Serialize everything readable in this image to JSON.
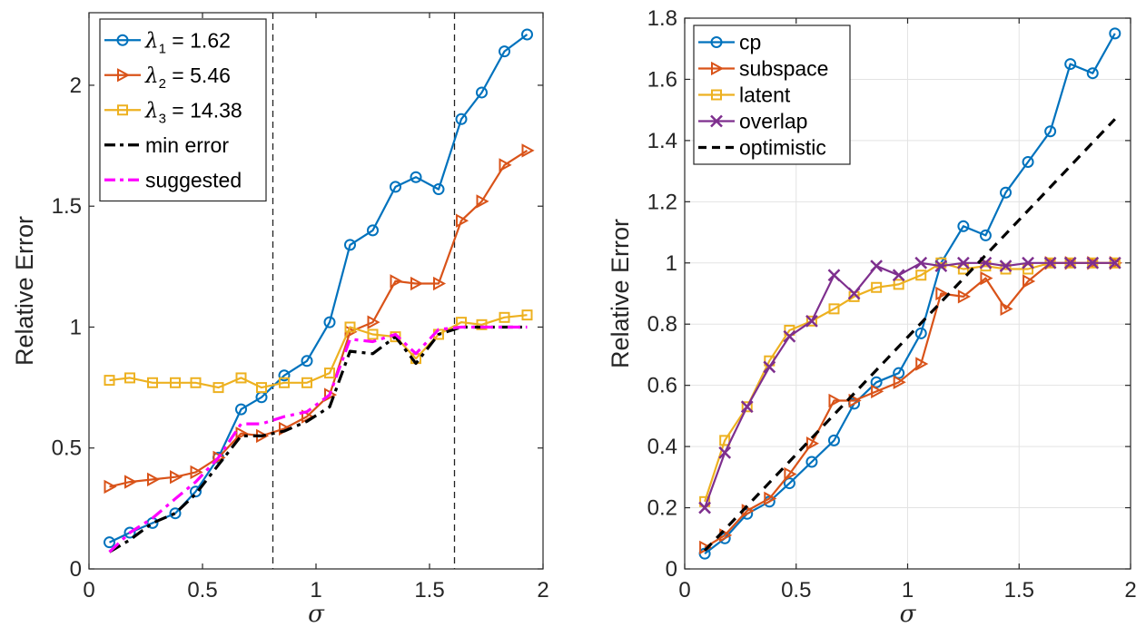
{
  "chart_data": [
    {
      "type": "line",
      "xlabel": "σ",
      "ylabel": "Relative Error",
      "xlim": [
        0,
        2
      ],
      "ylim": [
        0,
        2.3
      ],
      "xticks": [
        0,
        0.5,
        1,
        1.5,
        2
      ],
      "yticks": [
        0,
        0.5,
        1,
        1.5,
        2
      ],
      "xtick_labels": [
        "0",
        "0.5",
        "1",
        "1.5",
        "2"
      ],
      "ytick_labels": [
        "0",
        "0.5",
        "1",
        "1.5",
        "2"
      ],
      "grid": false,
      "legend_position": "top-left",
      "vlines": [
        0.81,
        1.61
      ],
      "series": [
        {
          "name": "λ1 = 1.62",
          "label": {
            "sym": "λ",
            "sub": "1",
            "rest": " = 1.62"
          },
          "color": "#0072BD",
          "marker": "circle",
          "dash": "solid",
          "x": [
            0.09,
            0.18,
            0.28,
            0.38,
            0.47,
            0.57,
            0.67,
            0.76,
            0.86,
            0.96,
            1.06,
            1.15,
            1.25,
            1.35,
            1.44,
            1.54,
            1.64,
            1.73,
            1.83,
            1.93
          ],
          "y": [
            0.11,
            0.15,
            0.19,
            0.23,
            0.32,
            0.46,
            0.66,
            0.71,
            0.8,
            0.86,
            1.02,
            1.34,
            1.4,
            1.58,
            1.62,
            1.57,
            1.86,
            1.97,
            2.14,
            2.21
          ]
        },
        {
          "name": "λ2 = 5.46",
          "label": {
            "sym": "λ",
            "sub": "2",
            "rest": " = 5.46"
          },
          "color": "#D95319",
          "marker": "triangle-right",
          "dash": "solid",
          "x": [
            0.09,
            0.18,
            0.28,
            0.38,
            0.47,
            0.57,
            0.67,
            0.76,
            0.86,
            0.96,
            1.06,
            1.15,
            1.25,
            1.35,
            1.44,
            1.54,
            1.64,
            1.73,
            1.83,
            1.93
          ],
          "y": [
            0.34,
            0.36,
            0.37,
            0.38,
            0.4,
            0.46,
            0.56,
            0.55,
            0.58,
            0.63,
            0.72,
            0.98,
            1.02,
            1.19,
            1.18,
            1.18,
            1.44,
            1.52,
            1.67,
            1.73
          ]
        },
        {
          "name": "λ3 = 14.38",
          "label": {
            "sym": "λ",
            "sub": "3",
            "rest": " = 14.38"
          },
          "color": "#EDB120",
          "marker": "square",
          "dash": "solid",
          "x": [
            0.09,
            0.18,
            0.28,
            0.38,
            0.47,
            0.57,
            0.67,
            0.76,
            0.86,
            0.96,
            1.06,
            1.15,
            1.25,
            1.35,
            1.44,
            1.54,
            1.64,
            1.73,
            1.83,
            1.93
          ],
          "y": [
            0.78,
            0.79,
            0.77,
            0.77,
            0.77,
            0.75,
            0.79,
            0.75,
            0.77,
            0.77,
            0.81,
            1.0,
            0.97,
            0.96,
            0.87,
            0.97,
            1.02,
            1.01,
            1.04,
            1.05
          ]
        },
        {
          "name": "min error",
          "label": {
            "sym": "",
            "sub": "",
            "rest": "min error"
          },
          "color": "#000000",
          "marker": "none",
          "dash": "dashdot",
          "x": [
            0.09,
            0.18,
            0.28,
            0.38,
            0.47,
            0.57,
            0.67,
            0.76,
            0.86,
            0.96,
            1.06,
            1.15,
            1.25,
            1.35,
            1.44,
            1.54,
            1.64,
            1.73,
            1.83,
            1.93
          ],
          "y": [
            0.07,
            0.12,
            0.19,
            0.23,
            0.31,
            0.43,
            0.55,
            0.55,
            0.57,
            0.61,
            0.67,
            0.9,
            0.89,
            0.96,
            0.85,
            0.97,
            1.0,
            1.0,
            1.0,
            1.0
          ]
        },
        {
          "name": "suggested",
          "label": {
            "sym": "",
            "sub": "",
            "rest": "suggested"
          },
          "color": "#FF00FF",
          "marker": "none",
          "dash": "dashdot",
          "x": [
            0.09,
            0.18,
            0.28,
            0.38,
            0.47,
            0.57,
            0.67,
            0.76,
            0.86,
            0.96,
            1.06,
            1.15,
            1.25,
            1.35,
            1.44,
            1.54,
            1.64,
            1.73,
            1.83,
            1.93
          ],
          "y": [
            0.07,
            0.15,
            0.21,
            0.29,
            0.36,
            0.46,
            0.6,
            0.6,
            0.63,
            0.65,
            0.72,
            0.95,
            0.94,
            0.97,
            0.89,
            0.99,
            1.0,
            1.0,
            1.0,
            1.0
          ]
        }
      ]
    },
    {
      "type": "line",
      "xlabel": "σ",
      "ylabel": "Relative Error",
      "xlim": [
        0,
        2
      ],
      "ylim": [
        0,
        1.8
      ],
      "xticks": [
        0,
        0.5,
        1,
        1.5,
        2
      ],
      "yticks": [
        0,
        0.2,
        0.4,
        0.6,
        0.8,
        1,
        1.2,
        1.4,
        1.6,
        1.8
      ],
      "xtick_labels": [
        "0",
        "0.5",
        "1",
        "1.5",
        "2"
      ],
      "ytick_labels": [
        "0",
        "0.2",
        "0.4",
        "0.6",
        "0.8",
        "1",
        "1.2",
        "1.4",
        "1.6",
        "1.8"
      ],
      "grid": true,
      "legend_position": "top-left",
      "vlines": [],
      "series": [
        {
          "name": "cp",
          "label": {
            "sym": "",
            "sub": "",
            "rest": "cp"
          },
          "color": "#0072BD",
          "marker": "circle",
          "dash": "solid",
          "x": [
            0.09,
            0.18,
            0.28,
            0.38,
            0.47,
            0.57,
            0.67,
            0.76,
            0.86,
            0.96,
            1.06,
            1.15,
            1.25,
            1.35,
            1.44,
            1.54,
            1.64,
            1.73,
            1.83,
            1.93
          ],
          "y": [
            0.05,
            0.1,
            0.18,
            0.22,
            0.28,
            0.35,
            0.42,
            0.54,
            0.61,
            0.64,
            0.77,
            1.0,
            1.12,
            1.09,
            1.23,
            1.33,
            1.43,
            1.65,
            1.62,
            1.75
          ]
        },
        {
          "name": "subspace",
          "label": {
            "sym": "",
            "sub": "",
            "rest": "subspace"
          },
          "color": "#D95319",
          "marker": "triangle-right",
          "dash": "solid",
          "x": [
            0.09,
            0.18,
            0.28,
            0.38,
            0.47,
            0.57,
            0.67,
            0.76,
            0.86,
            0.96,
            1.06,
            1.15,
            1.25,
            1.35,
            1.44,
            1.54,
            1.64,
            1.73,
            1.83,
            1.93
          ],
          "y": [
            0.07,
            0.11,
            0.19,
            0.23,
            0.31,
            0.41,
            0.55,
            0.55,
            0.58,
            0.61,
            0.67,
            0.9,
            0.89,
            0.95,
            0.85,
            0.94,
            1.0,
            1.0,
            1.0,
            1.0
          ]
        },
        {
          "name": "latent",
          "label": {
            "sym": "",
            "sub": "",
            "rest": "latent"
          },
          "color": "#EDB120",
          "marker": "square",
          "dash": "solid",
          "x": [
            0.09,
            0.18,
            0.28,
            0.38,
            0.47,
            0.57,
            0.67,
            0.76,
            0.86,
            0.96,
            1.06,
            1.15,
            1.25,
            1.35,
            1.44,
            1.54,
            1.64,
            1.73,
            1.83,
            1.93
          ],
          "y": [
            0.22,
            0.42,
            0.53,
            0.68,
            0.78,
            0.81,
            0.85,
            0.89,
            0.92,
            0.93,
            0.96,
            1.0,
            0.98,
            0.99,
            0.98,
            0.98,
            1.0,
            1.0,
            1.0,
            1.0
          ]
        },
        {
          "name": "overlap",
          "label": {
            "sym": "",
            "sub": "",
            "rest": "overlap"
          },
          "color": "#7E2F8E",
          "marker": "x",
          "dash": "solid",
          "x": [
            0.09,
            0.18,
            0.28,
            0.38,
            0.47,
            0.57,
            0.67,
            0.76,
            0.86,
            0.96,
            1.06,
            1.15,
            1.25,
            1.35,
            1.44,
            1.54,
            1.64,
            1.73,
            1.83,
            1.93
          ],
          "y": [
            0.2,
            0.38,
            0.53,
            0.66,
            0.76,
            0.81,
            0.96,
            0.9,
            0.99,
            0.96,
            1.0,
            0.99,
            1.0,
            1.0,
            0.99,
            1.0,
            1.0,
            1.0,
            1.0,
            1.0
          ]
        },
        {
          "name": "optimistic",
          "label": {
            "sym": "",
            "sub": "",
            "rest": "optimistic"
          },
          "color": "#000000",
          "marker": "none",
          "dash": "dashed",
          "x": [
            0.09,
            1.93
          ],
          "y": [
            0.06,
            1.47
          ]
        }
      ]
    }
  ]
}
